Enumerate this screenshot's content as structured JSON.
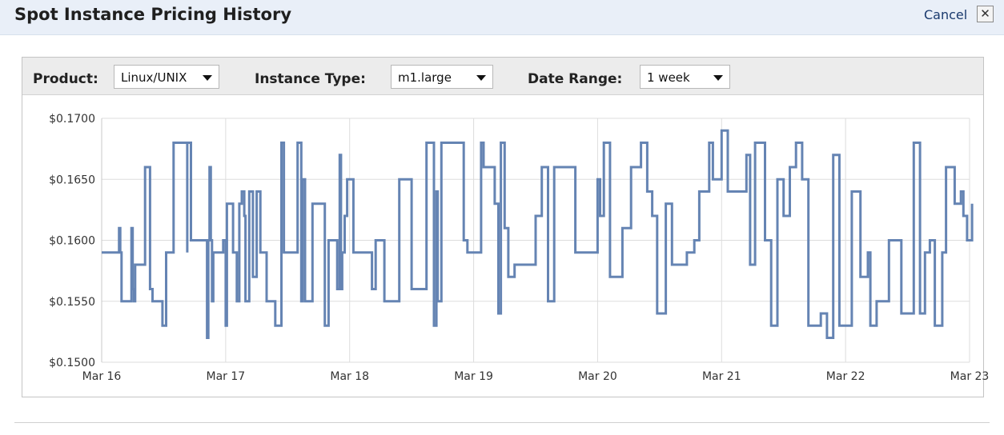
{
  "header": {
    "title": "Spot Instance Pricing History",
    "cancel_label": "Cancel",
    "close_glyph": "✕"
  },
  "filters": {
    "product": {
      "label": "Product:",
      "value": "Linux/UNIX"
    },
    "instance_type": {
      "label": "Instance Type:",
      "value": "m1.large"
    },
    "date_range": {
      "label": "Date Range:",
      "value": "1 week"
    }
  },
  "icons": {
    "dropdown": "chevron-down-icon",
    "close": "close-icon"
  },
  "colors": {
    "line": "#6584b3",
    "header_bg": "#e9eff8",
    "toolbar_bg": "#ececec",
    "grid": "#dddddd"
  },
  "chart_data": {
    "type": "line",
    "step": true,
    "title": "",
    "xlabel": "",
    "ylabel": "",
    "ylim": [
      0.15,
      0.17
    ],
    "yticks": [
      0.15,
      0.155,
      0.16,
      0.165,
      0.17
    ],
    "ytick_labels": [
      "$0.1500",
      "$0.1550",
      "$0.1600",
      "$0.1650",
      "$0.1700"
    ],
    "xlim": [
      "Mar 16",
      "Mar 23"
    ],
    "xtick_labels": [
      "Mar 16",
      "Mar 17",
      "Mar 18",
      "Mar 19",
      "Mar 20",
      "Mar 21",
      "Mar 22",
      "Mar 23"
    ],
    "grid": true,
    "legend": "none",
    "x_unit": "days after Mar 16",
    "series": [
      {
        "x": [
          0,
          0.14,
          0.15,
          0.16,
          0.24,
          0.25,
          0.26,
          0.27,
          0.35,
          0.39,
          0.41,
          0.49,
          0.52,
          0.58,
          0.69,
          0.69,
          0.72,
          0.85,
          0.86,
          0.87,
          0.88,
          0.89,
          0.9,
          0.98,
          1,
          1.01,
          1.06,
          1.09,
          1.11,
          1.13,
          1.15,
          1.16,
          1.19,
          1.22,
          1.25,
          1.28,
          1.33,
          1.4,
          1.45,
          1.47,
          1.58,
          1.61,
          1.62,
          1.64,
          1.7,
          1.8,
          1.83,
          1.9,
          1.92,
          1.93,
          1.94,
          1.96,
          1.98,
          2.03,
          2.18,
          2.21,
          2.28,
          2.4,
          2.5,
          2.62,
          2.68,
          2.7,
          2.71,
          2.74,
          2.92,
          2.95,
          3.06,
          3.08,
          3.17,
          3.2,
          3.22,
          3.25,
          3.28,
          3.33,
          3.5,
          3.55,
          3.6,
          3.65,
          3.82,
          4,
          4.02,
          4.05,
          4.1,
          4.2,
          4.27,
          4.35,
          4.4,
          4.44,
          4.48,
          4.55,
          4.6,
          4.72,
          4.78,
          4.82,
          4.9,
          4.93,
          5,
          5.05,
          5.2,
          5.23,
          5.27,
          5.35,
          5.4,
          5.45,
          5.5,
          5.55,
          5.6,
          5.65,
          5.7,
          5.8,
          5.85,
          5.9,
          5.95,
          6.05,
          6.12,
          6.18,
          6.2,
          6.25,
          6.35,
          6.45,
          6.55,
          6.6,
          6.64,
          6.68,
          6.72,
          6.78,
          6.81,
          6.88,
          6.93,
          6.95,
          6.98,
          7.02
        ],
        "y": [
          0.159,
          0.161,
          0.159,
          0.155,
          0.161,
          0.156,
          0.155,
          0.158,
          0.166,
          0.156,
          0.155,
          0.153,
          0.159,
          0.168,
          0.159,
          0.168,
          0.16,
          0.152,
          0.16,
          0.166,
          0.16,
          0.155,
          0.159,
          0.16,
          0.153,
          0.163,
          0.159,
          0.155,
          0.163,
          0.164,
          0.162,
          0.155,
          0.164,
          0.157,
          0.164,
          0.159,
          0.155,
          0.153,
          0.168,
          0.159,
          0.168,
          0.155,
          0.165,
          0.155,
          0.163,
          0.153,
          0.16,
          0.156,
          0.167,
          0.156,
          0.159,
          0.162,
          0.165,
          0.159,
          0.156,
          0.16,
          0.155,
          0.165,
          0.156,
          0.168,
          0.153,
          0.164,
          0.155,
          0.168,
          0.16,
          0.159,
          0.168,
          0.166,
          0.163,
          0.154,
          0.168,
          0.161,
          0.157,
          0.158,
          0.162,
          0.166,
          0.155,
          0.166,
          0.159,
          0.165,
          0.162,
          0.168,
          0.157,
          0.161,
          0.166,
          0.168,
          0.164,
          0.162,
          0.154,
          0.163,
          0.158,
          0.159,
          0.16,
          0.164,
          0.168,
          0.165,
          0.169,
          0.164,
          0.167,
          0.158,
          0.168,
          0.16,
          0.153,
          0.165,
          0.162,
          0.166,
          0.168,
          0.165,
          0.153,
          0.154,
          0.152,
          0.167,
          0.153,
          0.164,
          0.157,
          0.159,
          0.153,
          0.155,
          0.16,
          0.154,
          0.168,
          0.154,
          0.159,
          0.16,
          0.153,
          0.159,
          0.166,
          0.163,
          0.164,
          0.162,
          0.16,
          0.163
        ]
      }
    ]
  }
}
